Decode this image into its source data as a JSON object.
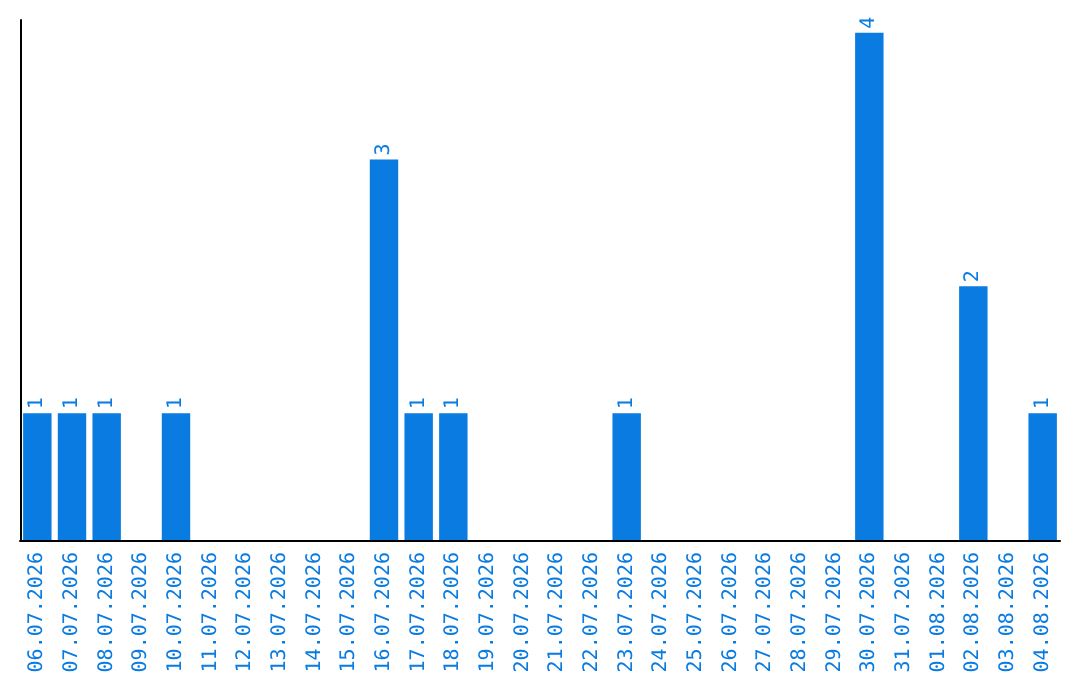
{
  "chart_data": {
    "type": "bar",
    "categories": [
      "06.07.2026",
      "07.07.2026",
      "08.07.2026",
      "09.07.2026",
      "10.07.2026",
      "11.07.2026",
      "12.07.2026",
      "13.07.2026",
      "14.07.2026",
      "15.07.2026",
      "16.07.2026",
      "17.07.2026",
      "18.07.2026",
      "19.07.2026",
      "20.07.2026",
      "21.07.2026",
      "22.07.2026",
      "23.07.2026",
      "24.07.2026",
      "25.07.2026",
      "26.07.2026",
      "27.07.2026",
      "28.07.2026",
      "29.07.2026",
      "30.07.2026",
      "31.07.2026",
      "01.08.2026",
      "02.08.2026",
      "03.08.2026",
      "04.08.2026"
    ],
    "values": [
      1,
      1,
      1,
      0,
      1,
      0,
      0,
      0,
      0,
      0,
      3,
      1,
      1,
      0,
      0,
      0,
      0,
      1,
      0,
      0,
      0,
      0,
      0,
      0,
      4,
      0,
      0,
      2,
      0,
      1
    ],
    "value_labels": [
      "1",
      "1",
      "1",
      null,
      "1",
      null,
      null,
      null,
      null,
      null,
      "3",
      "1",
      "1",
      null,
      null,
      null,
      null,
      "1",
      null,
      null,
      null,
      null,
      null,
      null,
      "4",
      null,
      null,
      "2",
      null,
      "1"
    ],
    "color": "#0a7be0",
    "ylim": [
      0,
      4.1
    ],
    "tick_labels": "x",
    "grid": false
  }
}
